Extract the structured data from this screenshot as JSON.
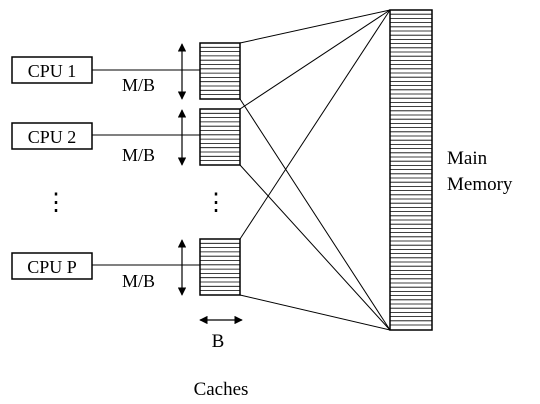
{
  "cpus": [
    {
      "label": "CPU 1",
      "cache_label": "M/B"
    },
    {
      "label": "CPU 2",
      "cache_label": "M/B"
    },
    {
      "label": "CPU P",
      "cache_label": "M/B"
    }
  ],
  "ellipsis_cpus": "⋮",
  "ellipsis_caches": "⋮",
  "block_label": "B",
  "caches_label": "Caches",
  "memory_label_line1": "Main",
  "memory_label_line2": "Memory"
}
